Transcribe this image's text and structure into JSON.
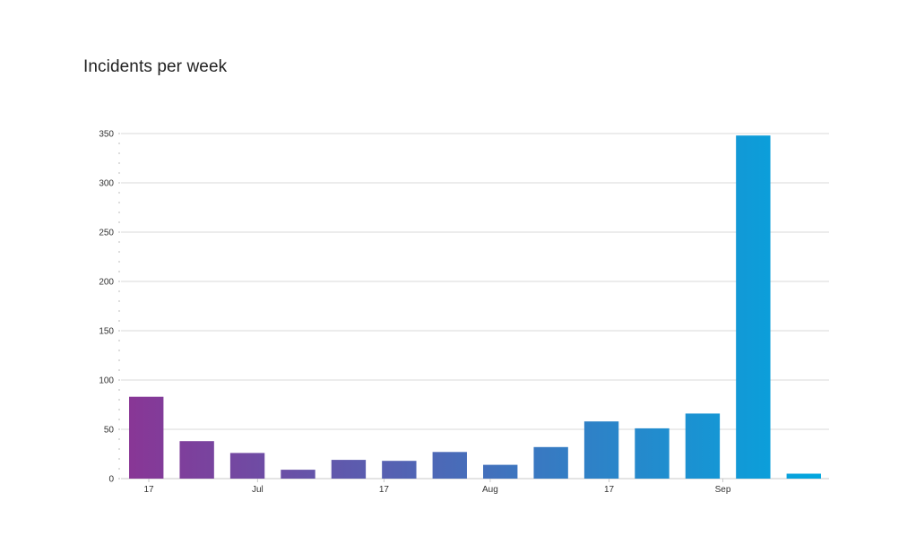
{
  "chart_data": {
    "type": "bar",
    "title": "Incidents per week",
    "xlabel": "",
    "ylabel": "",
    "ylim": [
      0,
      350
    ],
    "yticks": [
      0,
      50,
      100,
      150,
      200,
      250,
      300,
      350
    ],
    "grid": true,
    "legend": "none",
    "values": [
      83,
      38,
      26,
      9,
      19,
      18,
      27,
      14,
      32,
      58,
      51,
      66,
      348,
      5
    ],
    "xtick_labels": [
      {
        "label": "17",
        "after_bar": 0.55
      },
      {
        "label": "Jul",
        "after_bar": 2.7
      },
      {
        "label": "17",
        "after_bar": 5.2
      },
      {
        "label": "Aug",
        "after_bar": 7.3
      },
      {
        "label": "17",
        "after_bar": 9.65
      },
      {
        "label": "Sep",
        "after_bar": 11.9
      }
    ],
    "gradient": {
      "start": "#8a3595",
      "end": "#00a8e0"
    }
  }
}
